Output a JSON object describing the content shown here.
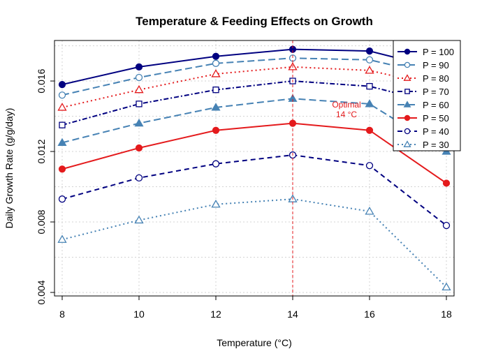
{
  "chart_data": {
    "type": "line",
    "title": "Temperature & Feeding Effects on Growth",
    "xlabel": "Temperature (°C)",
    "ylabel": "Daily Growth Rate (g/g/day)",
    "x": [
      8,
      10,
      12,
      14,
      16,
      18
    ],
    "x_ticks": [
      "8",
      "10",
      "12",
      "14",
      "16",
      "18"
    ],
    "xlim": [
      7.8,
      18.2
    ],
    "ylim": [
      0.0038,
      0.0183
    ],
    "y_ticks": [
      0.004,
      0.008,
      0.012,
      0.016
    ],
    "y_tick_labels": [
      "0.004",
      "0.008",
      "0.012",
      "0.016"
    ],
    "grid": true,
    "legend_position": "top-right",
    "series": [
      {
        "name": "P = 100",
        "values": [
          0.0158,
          0.0168,
          0.0174,
          0.0178,
          0.0177,
          0.0166
        ],
        "color": "#000080",
        "dash": "solid",
        "marker": "filled-circle"
      },
      {
        "name": "P = 90",
        "values": [
          0.0152,
          0.0162,
          0.017,
          0.0173,
          0.0172,
          0.0162
        ],
        "color": "#4682b4",
        "dash": "long-dash",
        "marker": "circle"
      },
      {
        "name": "P = 80",
        "values": [
          0.0145,
          0.0155,
          0.0164,
          0.0168,
          0.0166,
          0.0156
        ],
        "color": "#e41a1c",
        "dash": "dotted",
        "marker": "triangle"
      },
      {
        "name": "P = 70",
        "values": [
          0.0135,
          0.0147,
          0.0155,
          0.016,
          0.0157,
          0.0146
        ],
        "color": "#000080",
        "dash": "dot-dash",
        "marker": "square"
      },
      {
        "name": "P = 60",
        "values": [
          0.0125,
          0.0136,
          0.0145,
          0.015,
          0.0147,
          0.012
        ],
        "color": "#4682b4",
        "dash": "long-dash",
        "marker": "filled-triangle"
      },
      {
        "name": "P = 50",
        "values": [
          0.011,
          0.0122,
          0.0132,
          0.0136,
          0.0132,
          0.0102
        ],
        "color": "#e41a1c",
        "dash": "solid",
        "marker": "filled-circle"
      },
      {
        "name": "P = 40",
        "values": [
          0.0093,
          0.0105,
          0.0113,
          0.0118,
          0.0112,
          0.0078
        ],
        "color": "#000080",
        "dash": "dashed",
        "marker": "circle"
      },
      {
        "name": "P = 30",
        "values": [
          0.007,
          0.0081,
          0.009,
          0.0093,
          0.0086,
          0.0043
        ],
        "color": "#4682b4",
        "dash": "dotted",
        "marker": "triangle"
      }
    ],
    "annotations": [
      {
        "type": "vline",
        "x": 14,
        "color": "#e41a1c"
      },
      {
        "type": "text",
        "lines": [
          "Optimal",
          "14 °C"
        ],
        "x": 15.4,
        "y": 0.0145,
        "color": "#e41a1c"
      }
    ]
  }
}
